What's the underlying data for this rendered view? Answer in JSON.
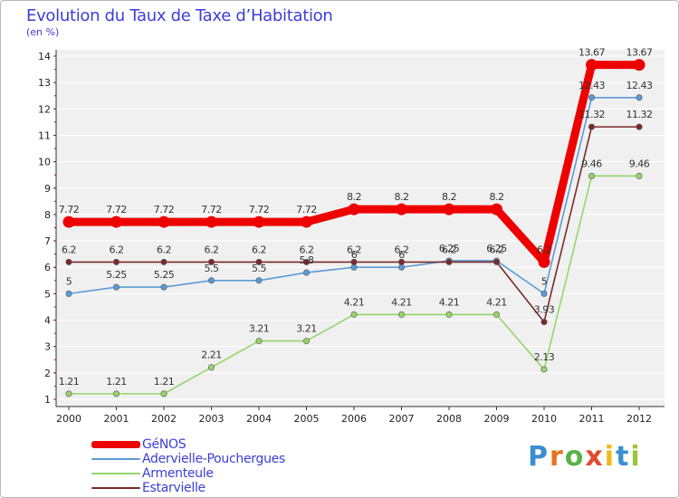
{
  "header": {
    "title": "Evolution du Taux de Taxe d’Habitation",
    "subtitle": "(en %)"
  },
  "brand": {
    "letters": [
      "P",
      "r",
      "o",
      "x",
      "i",
      "t",
      "i"
    ],
    "colors": [
      "#3b8fd0",
      "#e8741c",
      "#58b247",
      "#e24b2e",
      "#f1b817",
      "#3b8fd0",
      "#9ac43c"
    ]
  },
  "chart_data": {
    "type": "line",
    "title": "Evolution du Taux de Taxe d’Habitation",
    "ylabel": "(en %)",
    "xlabel": "",
    "x": [
      "2000",
      "2001",
      "2002",
      "2003",
      "2004",
      "2005",
      "2006",
      "2007",
      "2008",
      "2009",
      "2010",
      "2011",
      "2012"
    ],
    "ylim": [
      1,
      14
    ],
    "yticks": [
      "1",
      "2",
      "3",
      "4",
      "5",
      "6",
      "7",
      "8",
      "9",
      "10",
      "11",
      "12",
      "13",
      "14"
    ],
    "grid": "horizontal",
    "legend": "bottom-left",
    "series": [
      {
        "name": "GéNOS",
        "color": "#ee0000",
        "emphasis": "thick",
        "values": [
          7.72,
          7.72,
          7.72,
          7.72,
          7.72,
          7.72,
          8.2,
          8.2,
          8.2,
          8.2,
          6.2,
          13.67,
          13.67
        ],
        "labels": [
          "7.72",
          "7.72",
          "7.72",
          "7.72",
          "7.72",
          "7.72",
          "8.2",
          "8.2",
          "8.2",
          "8.2",
          "6.2",
          "13.67",
          "13.67"
        ]
      },
      {
        "name": "Adervielle-Pouchergues",
        "color": "#5b9bd5",
        "emphasis": "thin",
        "values": [
          5,
          5.25,
          5.25,
          5.5,
          5.5,
          5.8,
          6,
          6,
          6.25,
          6.25,
          5,
          12.43,
          12.43
        ],
        "labels": [
          "5",
          "5.25",
          "5.25",
          "5.5",
          "5.5",
          "5.8",
          "6",
          "6",
          "6.25",
          "6.25",
          "5",
          "12.43",
          "12.43"
        ]
      },
      {
        "name": "Armenteule",
        "color": "#97d56b",
        "emphasis": "thin",
        "values": [
          1.21,
          1.21,
          1.21,
          2.21,
          3.21,
          3.21,
          4.21,
          4.21,
          4.21,
          4.21,
          2.13,
          9.46,
          9.46
        ],
        "labels": [
          "1.21",
          "1.21",
          "1.21",
          "2.21",
          "3.21",
          "3.21",
          "4.21",
          "4.21",
          "4.21",
          "4.21",
          "2.13",
          "9.46",
          "9.46"
        ]
      },
      {
        "name": "Estarvielle",
        "color": "#7b2a2a",
        "emphasis": "thin",
        "values": [
          6.2,
          6.2,
          6.2,
          6.2,
          6.2,
          6.2,
          6.2,
          6.2,
          6.2,
          6.2,
          3.93,
          11.32,
          11.32
        ],
        "labels": [
          "6.2",
          "6.2",
          "6.2",
          "6.2",
          "6.2",
          "6.2",
          "6.2",
          "6.2",
          "6.2",
          "6.2",
          "3.93",
          "11.32",
          "11.32"
        ]
      }
    ]
  }
}
